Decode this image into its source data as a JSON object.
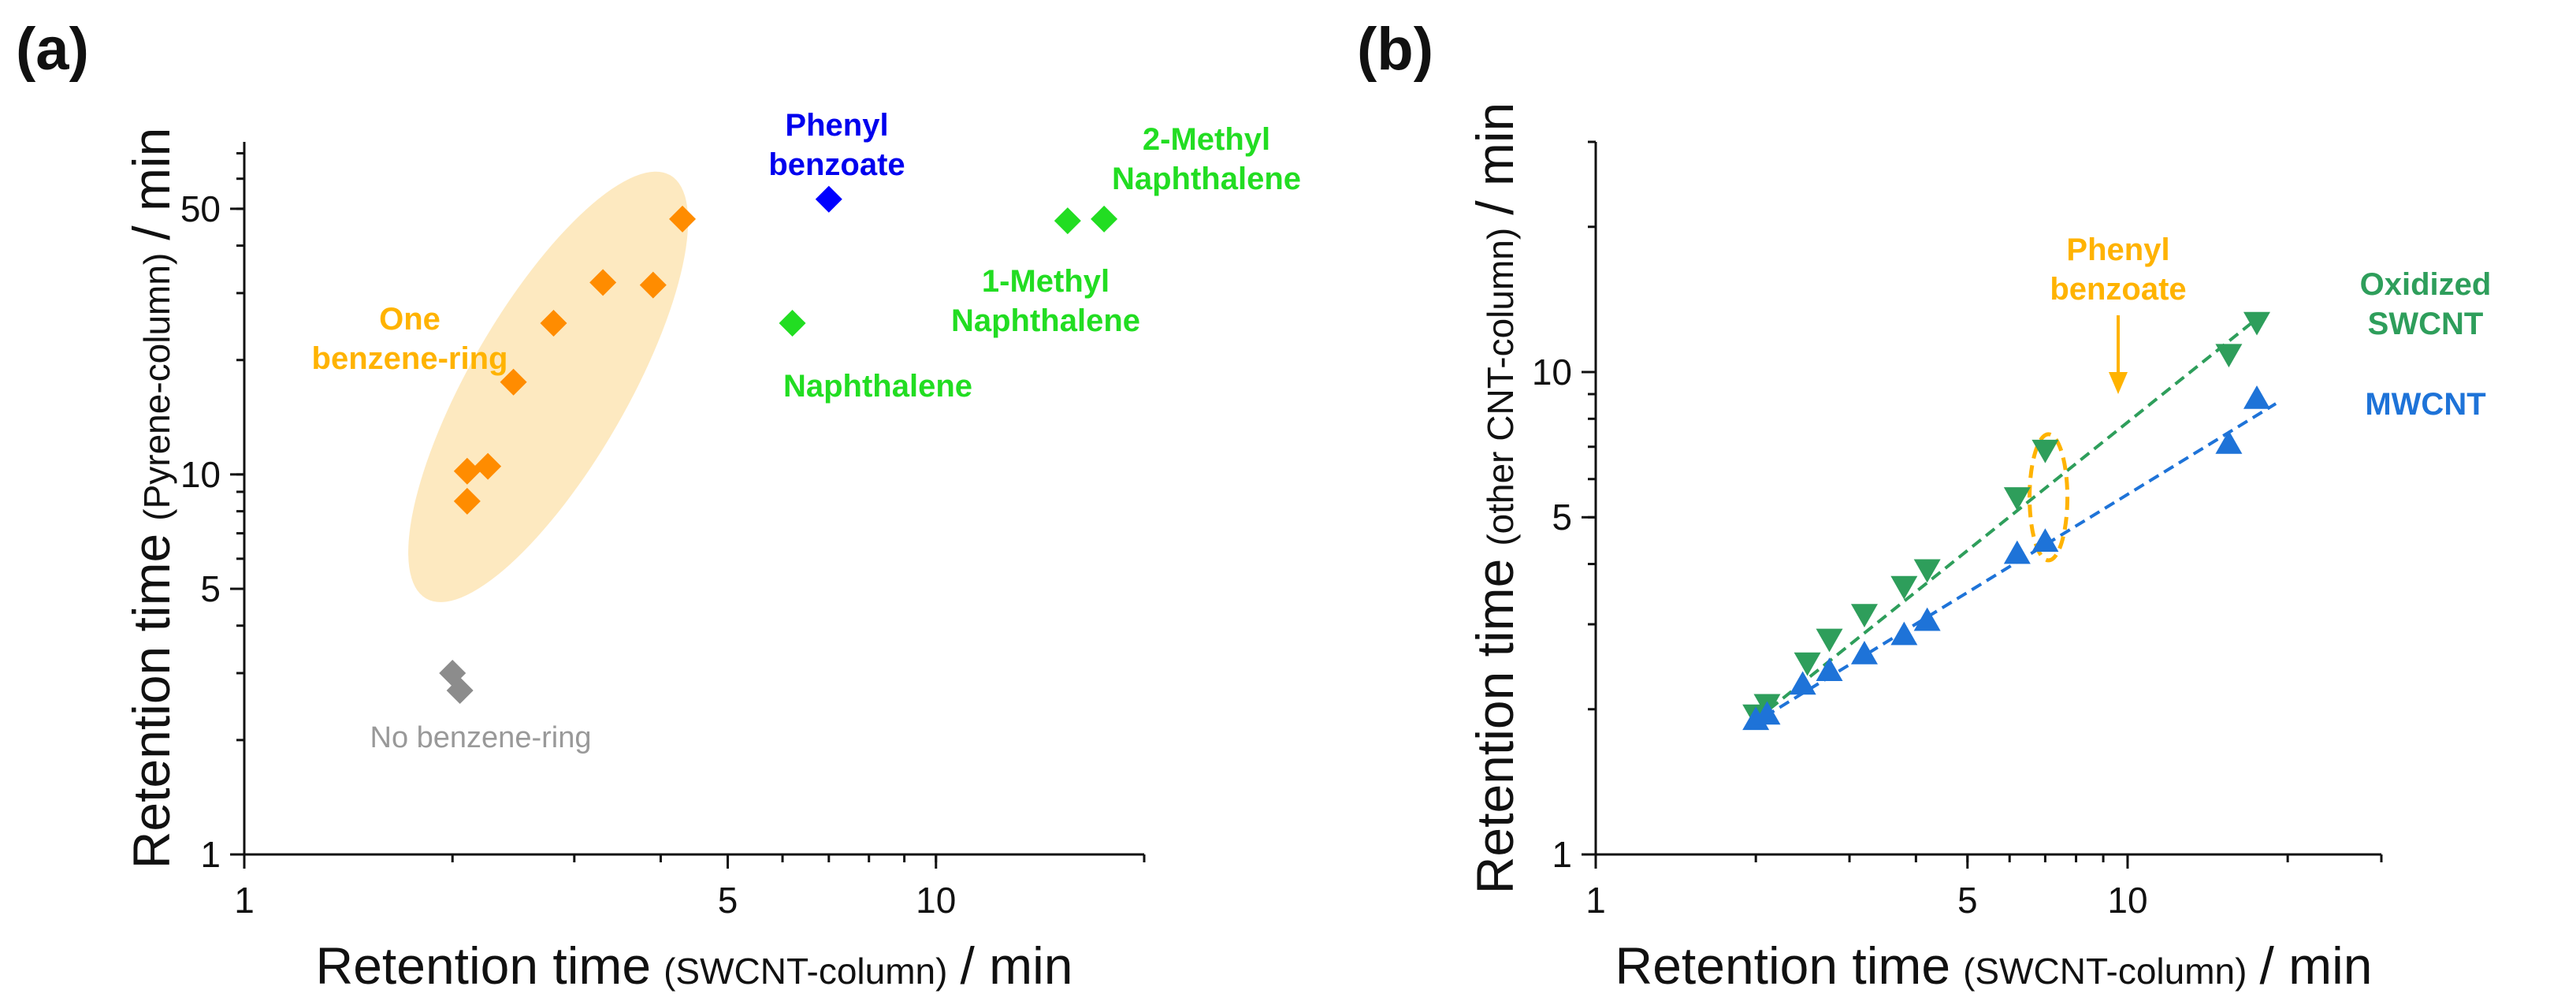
{
  "chart_data": [
    {
      "panel": "(a)",
      "type": "scatter",
      "xscale": "log",
      "yscale": "log",
      "xlim": [
        1,
        20
      ],
      "ylim": [
        1,
        75
      ],
      "xticks": [
        1,
        5,
        10
      ],
      "yticks": [
        1,
        5,
        10,
        50
      ],
      "xlabel": {
        "main": "Retention time",
        "sub": "(SWCNT-column)",
        "unit": "/ min"
      },
      "ylabel": {
        "main": "Retention time",
        "sub": "(Pyrene-column)",
        "unit": "/ min"
      },
      "series": [
        {
          "name": "One benzene-ring",
          "color": "#FF8C00",
          "marker": "diamond",
          "points": [
            [
              2.1,
              8.5
            ],
            [
              2.1,
              10.2
            ],
            [
              2.25,
              10.5
            ],
            [
              2.45,
              17.5
            ],
            [
              2.8,
              25
            ],
            [
              3.3,
              32
            ],
            [
              3.9,
              31.5
            ],
            [
              4.3,
              47
            ]
          ]
        },
        {
          "name": "No benzene-ring",
          "color": "#8C8C8C",
          "marker": "diamond",
          "points": [
            [
              2.0,
              3.0
            ],
            [
              2.05,
              2.7
            ]
          ]
        },
        {
          "name": "Phenyl benzoate",
          "color": "#0000FF",
          "marker": "diamond",
          "points": [
            [
              7.0,
              53
            ]
          ]
        },
        {
          "name": "Naphthalenes",
          "color": "#22DD22",
          "marker": "diamond",
          "points": [
            [
              6.2,
              25
            ],
            [
              15.5,
              46.5
            ],
            [
              17.5,
              47
            ]
          ]
        }
      ],
      "annotations": [
        {
          "key": "one",
          "lines": [
            "One",
            "benzene-ring"
          ],
          "color": "#FFB300",
          "bold": true
        },
        {
          "key": "none",
          "lines": [
            "No benzene-ring"
          ],
          "color": "#999999",
          "bold": false
        },
        {
          "key": "phenyl",
          "lines": [
            "Phenyl",
            "benzoate"
          ],
          "color": "#0000EE",
          "bold": true
        },
        {
          "key": "naph",
          "lines": [
            "Naphthalene"
          ],
          "color": "#22DD22",
          "bold": true
        },
        {
          "key": "onemethyl",
          "lines": [
            "1-Methyl",
            "Naphthalene"
          ],
          "color": "#22DD22",
          "bold": true
        },
        {
          "key": "twomethyl",
          "lines": [
            "2-Methyl",
            "Naphthalene"
          ],
          "color": "#22DD22",
          "bold": true
        }
      ]
    },
    {
      "panel": "(b)",
      "type": "scatter",
      "xscale": "log",
      "yscale": "log",
      "xlim": [
        1,
        30
      ],
      "ylim": [
        1,
        30
      ],
      "xticks": [
        1,
        5,
        10
      ],
      "yticks": [
        1,
        5,
        10
      ],
      "xlabel": {
        "main": "Retention time",
        "sub": "(SWCNT-column)",
        "unit": "/ min"
      },
      "ylabel": {
        "main": "Retention time",
        "sub": "(other CNT-column)",
        "unit": "/ min"
      },
      "series": [
        {
          "name": "Oxidized SWCNT",
          "color": "#2E9E5B",
          "marker": "triangle-down",
          "points": [
            [
              2.0,
              1.95
            ],
            [
              2.1,
              2.05
            ],
            [
              2.5,
              2.5
            ],
            [
              2.75,
              2.8
            ],
            [
              3.2,
              3.15
            ],
            [
              3.8,
              3.6
            ],
            [
              4.2,
              3.9
            ],
            [
              6.2,
              5.5
            ],
            [
              7.0,
              6.9
            ],
            [
              15.5,
              10.9
            ],
            [
              17.5,
              12.7
            ]
          ],
          "fit": [
            [
              2.0,
              1.9
            ],
            [
              17.5,
              12.9
            ]
          ]
        },
        {
          "name": "MWCNT",
          "color": "#1E73D8",
          "marker": "triangle-up",
          "points": [
            [
              2.0,
              1.9
            ],
            [
              2.1,
              1.95
            ],
            [
              2.45,
              2.25
            ],
            [
              2.75,
              2.4
            ],
            [
              3.2,
              2.6
            ],
            [
              3.8,
              2.85
            ],
            [
              4.2,
              3.05
            ],
            [
              6.2,
              4.2
            ],
            [
              7.0,
              4.45
            ],
            [
              15.5,
              7.1
            ],
            [
              17.5,
              8.8
            ]
          ],
          "fit": [
            [
              1.95,
              1.85
            ],
            [
              19.0,
              8.6
            ]
          ]
        }
      ],
      "annotations": [
        {
          "key": "phenyl",
          "lines": [
            "Phenyl",
            "benzoate"
          ],
          "color": "#FFB300",
          "bold": true
        },
        {
          "key": "oxidized",
          "lines": [
            "Oxidized",
            "SWCNT"
          ],
          "color": "#2E9E5B",
          "bold": true
        },
        {
          "key": "mwcnt",
          "lines": [
            "MWCNT"
          ],
          "color": "#1E73D8",
          "bold": true
        }
      ]
    }
  ]
}
